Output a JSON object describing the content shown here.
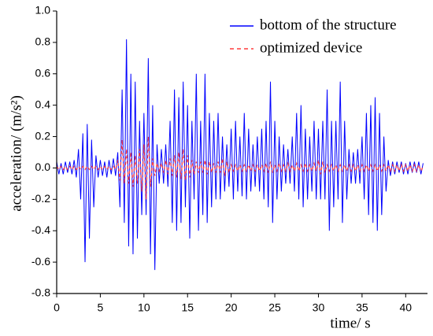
{
  "chart_data": {
    "type": "line",
    "xlabel": "time/ s",
    "ylabel": "acceleration/ (m/s²)",
    "xlim": [
      0,
      42.5
    ],
    "ylim": [
      -0.8,
      1.0
    ],
    "xticks": [
      0,
      5,
      10,
      15,
      20,
      25,
      30,
      35,
      40
    ],
    "yticks": [
      -0.8,
      -0.6,
      -0.4,
      -0.2,
      {
        "value": 0,
        "label": "0.0"
      },
      0.2,
      0.4,
      0.6,
      0.8,
      {
        "value": 1,
        "label": "1.0"
      }
    ],
    "legend": "upper right",
    "x": [
      0,
      0.25,
      0.5,
      0.75,
      1,
      1.25,
      1.5,
      1.75,
      2,
      2.25,
      2.5,
      2.75,
      3,
      3.25,
      3.5,
      3.75,
      4,
      4.25,
      4.5,
      4.75,
      5,
      5.25,
      5.5,
      5.75,
      6,
      6.25,
      6.5,
      6.75,
      7,
      7.25,
      7.5,
      7.75,
      8,
      8.25,
      8.5,
      8.75,
      9,
      9.25,
      9.5,
      9.75,
      10,
      10.25,
      10.5,
      10.75,
      11,
      11.25,
      11.5,
      11.75,
      12,
      12.25,
      12.5,
      12.75,
      13,
      13.25,
      13.5,
      13.75,
      14,
      14.25,
      14.5,
      14.75,
      15,
      15.25,
      15.5,
      15.75,
      16,
      16.25,
      16.5,
      16.75,
      17,
      17.25,
      17.5,
      17.75,
      18,
      18.25,
      18.5,
      18.75,
      19,
      19.25,
      19.5,
      19.75,
      20,
      20.25,
      20.5,
      20.75,
      21,
      21.25,
      21.5,
      21.75,
      22,
      22.25,
      22.5,
      22.75,
      23,
      23.25,
      23.5,
      23.75,
      24,
      24.25,
      24.5,
      24.75,
      25,
      25.25,
      25.5,
      25.75,
      26,
      26.25,
      26.5,
      26.75,
      27,
      27.25,
      27.5,
      27.75,
      28,
      28.25,
      28.5,
      28.75,
      29,
      29.25,
      29.5,
      29.75,
      30,
      30.25,
      30.5,
      30.75,
      31,
      31.25,
      31.5,
      31.75,
      32,
      32.25,
      32.5,
      32.75,
      33,
      33.25,
      33.5,
      33.75,
      34,
      34.25,
      34.5,
      34.75,
      35,
      35.25,
      35.5,
      35.75,
      36,
      36.25,
      36.5,
      36.75,
      37,
      37.25,
      37.5,
      37.75,
      38,
      38.25,
      38.5,
      38.75,
      39,
      39.25,
      39.5,
      39.75,
      40,
      40.25,
      40.5,
      40.75,
      41,
      41.25,
      41.5,
      41.75,
      42
    ],
    "series": [
      {
        "name": "bottom of the structure",
        "color": "#0000ff",
        "dash": false,
        "values": [
          0.04,
          -0.04,
          0.03,
          -0.04,
          0.04,
          -0.03,
          0.04,
          -0.04,
          0.05,
          -0.06,
          0.12,
          -0.2,
          0.22,
          -0.6,
          0.28,
          -0.45,
          0.18,
          -0.25,
          0.08,
          -0.06,
          0.05,
          -0.05,
          0.04,
          -0.06,
          0.05,
          -0.04,
          0.06,
          -0.05,
          0.1,
          -0.25,
          0.5,
          -0.35,
          0.82,
          -0.5,
          0.6,
          -0.55,
          0.55,
          -0.45,
          0.3,
          -0.3,
          0.35,
          -0.3,
          0.7,
          -0.55,
          0.4,
          -0.65,
          0.15,
          -0.1,
          0.12,
          -0.1,
          0.15,
          -0.12,
          0.3,
          -0.35,
          0.5,
          -0.4,
          0.45,
          -0.35,
          0.55,
          -0.25,
          0.4,
          -0.45,
          0.3,
          -0.2,
          0.6,
          -0.4,
          0.3,
          -0.3,
          0.6,
          -0.35,
          0.35,
          -0.25,
          0.3,
          -0.2,
          0.35,
          -0.2,
          0.2,
          -0.15,
          0.15,
          -0.12,
          0.25,
          -0.2,
          0.3,
          -0.15,
          0.2,
          -0.18,
          0.35,
          -0.2,
          0.25,
          -0.15,
          0.15,
          -0.12,
          0.2,
          -0.15,
          0.25,
          -0.2,
          0.3,
          -0.25,
          0.55,
          -0.35,
          0.3,
          -0.2,
          0.2,
          -0.15,
          0.15,
          -0.1,
          0.12,
          -0.1,
          0.2,
          -0.15,
          0.35,
          -0.2,
          0.4,
          -0.25,
          0.25,
          -0.2,
          0.2,
          -0.15,
          0.3,
          -0.2,
          0.25,
          -0.2,
          0.3,
          -0.2,
          0.5,
          -0.4,
          0.3,
          -0.25,
          0.3,
          -0.2,
          0.55,
          -0.35,
          0.3,
          -0.2,
          0.12,
          -0.1,
          0.1,
          -0.1,
          0.12,
          -0.1,
          0.2,
          -0.2,
          0.35,
          -0.3,
          0.4,
          -0.35,
          0.45,
          -0.4,
          0.35,
          -0.3,
          0.2,
          -0.15,
          0.05,
          -0.05,
          0.04,
          -0.04,
          0.04,
          -0.03,
          0.04,
          -0.04,
          0.03,
          -0.04,
          0.04,
          -0.03,
          0.04,
          -0.03,
          0.04,
          -0.04,
          0.03
        ]
      },
      {
        "name": "optimized device",
        "color": "#ff3b3b",
        "dash": true,
        "values": [
          0.01,
          -0.01,
          0.01,
          -0.01,
          0.01,
          -0.01,
          0.01,
          -0.01,
          0.01,
          -0.01,
          0.01,
          -0.01,
          0.01,
          -0.01,
          0.01,
          -0.01,
          0.01,
          -0.01,
          0.01,
          -0.01,
          0.01,
          -0.01,
          0.01,
          -0.01,
          0.01,
          -0.01,
          0.01,
          -0.01,
          0.05,
          -0.08,
          0.18,
          -0.1,
          0.12,
          -0.1,
          0.1,
          -0.12,
          0.08,
          -0.1,
          0.12,
          -0.15,
          0.15,
          -0.2,
          0.2,
          -0.12,
          0.06,
          -0.05,
          0.03,
          -0.02,
          0.03,
          -0.03,
          0.05,
          -0.04,
          0.06,
          -0.05,
          0.08,
          -0.06,
          0.1,
          -0.07,
          0.12,
          -0.08,
          0.08,
          -0.06,
          0.05,
          -0.04,
          0.04,
          -0.03,
          0.04,
          -0.03,
          0.05,
          -0.04,
          0.04,
          -0.03,
          0.03,
          -0.03,
          0.04,
          -0.03,
          0.06,
          -0.05,
          0.04,
          -0.03,
          0.02,
          -0.02,
          0.02,
          -0.02,
          0.02,
          -0.02,
          0.02,
          -0.02,
          0.02,
          -0.02,
          0.02,
          -0.02,
          0.02,
          -0.02,
          0.02,
          -0.02,
          0.03,
          -0.03,
          0.04,
          -0.03,
          0.02,
          -0.02,
          0.03,
          -0.02,
          0.02,
          -0.02,
          0.03,
          -0.02,
          0.02,
          -0.02,
          0.03,
          -0.02,
          0.02,
          -0.02,
          0.03,
          -0.02,
          0.02,
          -0.02,
          0.03,
          -0.02,
          0.05,
          -0.04,
          0.04,
          -0.03,
          0.02,
          -0.02,
          0.02,
          -0.02,
          0.02,
          -0.02,
          0.02,
          -0.02,
          0.02,
          -0.02,
          0.02,
          -0.02,
          0.02,
          -0.02,
          0.02,
          -0.02,
          0.02,
          -0.02,
          0.02,
          -0.02,
          0.02,
          -0.02,
          0.02,
          -0.02,
          0.02,
          -0.02,
          0.02,
          -0.02,
          0.02,
          -0.02,
          0.02,
          -0.02,
          0.02,
          -0.02,
          0.02,
          -0.02,
          0.02,
          -0.02,
          0.02,
          -0.02,
          0.02,
          -0.02,
          0.02,
          -0.02,
          0.01
        ]
      }
    ]
  }
}
